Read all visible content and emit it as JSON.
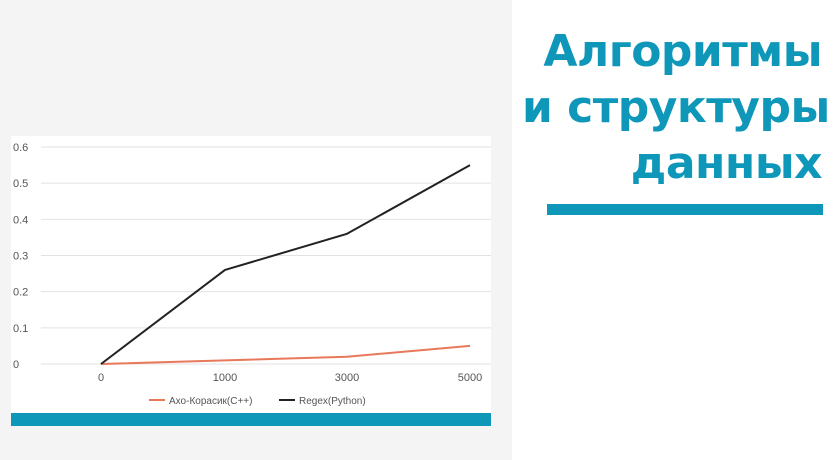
{
  "slide": {
    "title_lines": [
      "Алгоритмы",
      "и структуры",
      "данных"
    ],
    "accent_color": "#0e97b9"
  },
  "chart_data": {
    "type": "line",
    "title": "",
    "xlabel": "",
    "ylabel": "",
    "categories": [
      "0",
      "1000",
      "3000",
      "5000"
    ],
    "ylim": [
      0,
      0.6
    ],
    "yticks": [
      0,
      0.1,
      0.2,
      0.3,
      0.4,
      0.5,
      0.6
    ],
    "ytick_labels": [
      "0",
      "0.1",
      "0.2",
      "0.3",
      "0.4",
      "0.5",
      "0.6"
    ],
    "grid": true,
    "legend_position": "bottom",
    "series": [
      {
        "name": "Ахо-Корасик(C++)",
        "values": [
          0,
          0.01,
          0.02,
          0.05
        ],
        "color": "#e8785a"
      },
      {
        "name": "Regex(Python)",
        "values": [
          0,
          0.26,
          0.36,
          0.55
        ],
        "color": "#222222"
      }
    ]
  }
}
